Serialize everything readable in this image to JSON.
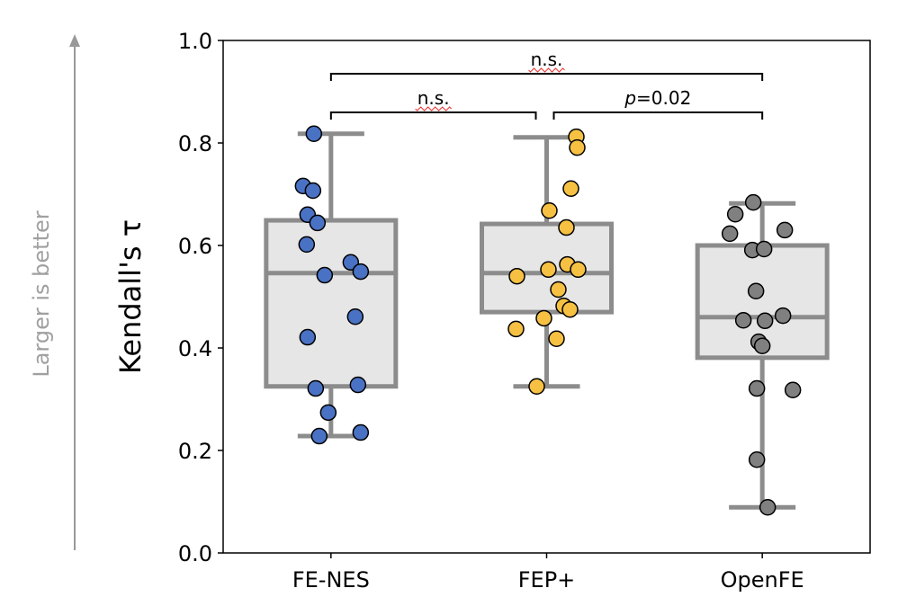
{
  "chart_data": {
    "type": "box",
    "title": "",
    "xlabel": "",
    "ylabel": "Kendall's τ",
    "side_annotation": "Larger is better",
    "ylim": [
      0.0,
      1.0
    ],
    "yticks": [
      "0.0",
      "0.2",
      "0.4",
      "0.6",
      "0.8",
      "1.0"
    ],
    "grid": false,
    "categories": [
      "FE-NES",
      "FEP+",
      "OpenFE"
    ],
    "colors": {
      "FE-NES": "#4a72c4",
      "FEP+": "#f6c143",
      "OpenFE": "#808080",
      "box_stroke": "#8c8c8c",
      "box_fill": "#e6e6e6"
    },
    "boxes": [
      {
        "name": "FE-NES",
        "whisker_low": 0.228,
        "q1": 0.325,
        "median": 0.546,
        "q3": 0.649,
        "whisker_high": 0.818
      },
      {
        "name": "FEP+",
        "whisker_low": 0.325,
        "q1": 0.47,
        "median": 0.546,
        "q3": 0.642,
        "whisker_high": 0.811
      },
      {
        "name": "OpenFE",
        "whisker_low": 0.089,
        "q1": 0.381,
        "median": 0.46,
        "q3": 0.6,
        "whisker_high": 0.682
      }
    ],
    "points": {
      "FE-NES": [
        0.818,
        0.716,
        0.707,
        0.66,
        0.644,
        0.602,
        0.542,
        0.567,
        0.549,
        0.461,
        0.421,
        0.321,
        0.328,
        0.274,
        0.228,
        0.235
      ],
      "FEP+": [
        0.812,
        0.791,
        0.711,
        0.668,
        0.635,
        0.54,
        0.553,
        0.563,
        0.553,
        0.514,
        0.482,
        0.475,
        0.458,
        0.437,
        0.418,
        0.325
      ],
      "OpenFE": [
        0.684,
        0.661,
        0.623,
        0.63,
        0.591,
        0.593,
        0.511,
        0.454,
        0.453,
        0.463,
        0.412,
        0.404,
        0.321,
        0.318,
        0.182,
        0.089
      ]
    },
    "annotations": [
      {
        "from": "FE-NES",
        "to": "OpenFE",
        "label": "n.s."
      },
      {
        "from": "FE-NES",
        "to": "FEP+",
        "label": "n.s."
      },
      {
        "from": "FEP+",
        "to": "OpenFE",
        "label_italic": "p",
        "label": "=0.02"
      }
    ]
  }
}
